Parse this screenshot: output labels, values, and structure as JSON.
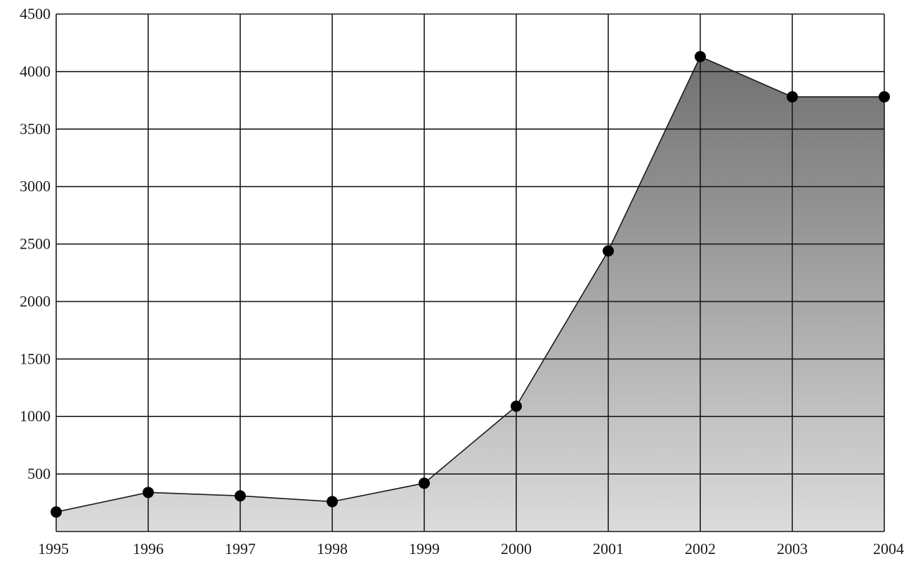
{
  "chart_data": {
    "type": "area",
    "title": "",
    "xlabel": "",
    "ylabel": "",
    "x": [
      1995,
      1996,
      1997,
      1998,
      1999,
      2000,
      2001,
      2002,
      2003,
      2004
    ],
    "x_tick_labels": [
      "1995",
      "1996",
      "1997",
      "1998",
      "1999",
      "2000",
      "2001",
      "2002",
      "2003",
      "2004"
    ],
    "y_tick_values": [
      500,
      1000,
      1500,
      2000,
      2500,
      3000,
      3500,
      4000,
      4500
    ],
    "y_tick_labels": [
      "500",
      "1000",
      "1500",
      "2000",
      "2500",
      "3000",
      "3500",
      "4000",
      "4500"
    ],
    "series": [
      {
        "values": [
          170,
          340,
          310,
          260,
          420,
          1090,
          2440,
          4130,
          3780,
          3780
        ]
      }
    ],
    "xlim": [
      1995,
      2004
    ],
    "ylim": [
      0,
      4500
    ],
    "grid": true,
    "legend": "none",
    "colors": {
      "fill_top": "#707070",
      "fill_bottom": "#dcdcdc",
      "line": "#1a1a1a",
      "marker": "#000000",
      "grid": "#1a1a1a"
    }
  }
}
